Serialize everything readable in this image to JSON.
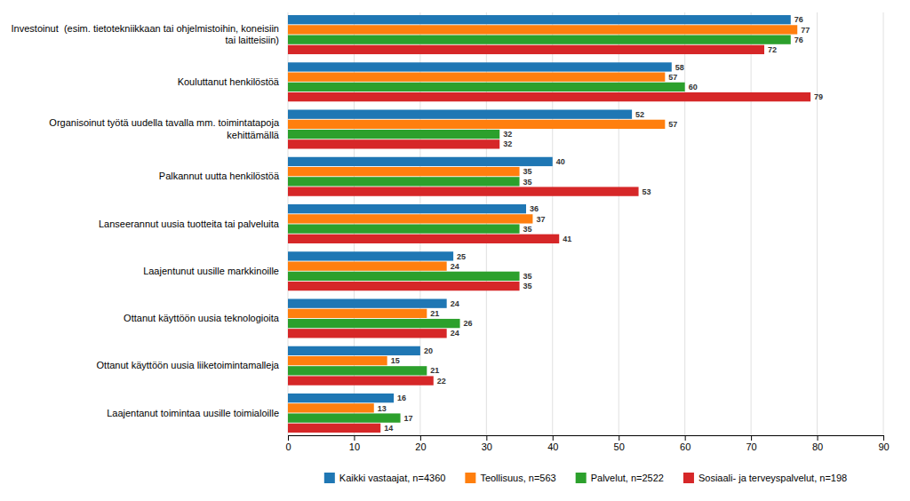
{
  "chart_data": {
    "type": "bar",
    "orientation": "horizontal",
    "categories": [
      "Investoinut  (esim. tietotekniikkaan tai ohjelmistoihin, koneisiin\ntai laitteisiin)",
      "Kouluttanut henkilöstöä",
      "Organisoinut työtä uudella tavalla mm. toimintatapoja\nkehittämällä",
      "Palkannut uutta henkilöstöä",
      "Lanseerannut uusia tuotteita tai palveluita",
      "Laajentunut uusille markkinoille",
      "Ottanut käyttöön uusia teknologioita",
      "Ottanut käyttöön uusia liiketoimintamalleja",
      "Laajentanut toimintaa uusille toimialoille"
    ],
    "series": [
      {
        "name": "Kaikki vastaajat, n=4360",
        "values": [
          76,
          58,
          52,
          40,
          36,
          25,
          24,
          20,
          16
        ]
      },
      {
        "name": "Teollisuus, n=563",
        "values": [
          77,
          57,
          57,
          35,
          37,
          24,
          21,
          15,
          13
        ]
      },
      {
        "name": "Palvelut, n=2522",
        "values": [
          76,
          60,
          32,
          35,
          35,
          35,
          26,
          21,
          17
        ]
      },
      {
        "name": "Sosiaali- ja terveyspalvelut, n=198",
        "values": [
          72,
          79,
          32,
          53,
          41,
          35,
          24,
          22,
          14
        ]
      }
    ],
    "xlim": [
      0,
      90
    ],
    "xticks": [
      0,
      10,
      20,
      30,
      40,
      50,
      60,
      70,
      80,
      90
    ],
    "grid": true,
    "legend": "bottom",
    "data_labels": true
  }
}
